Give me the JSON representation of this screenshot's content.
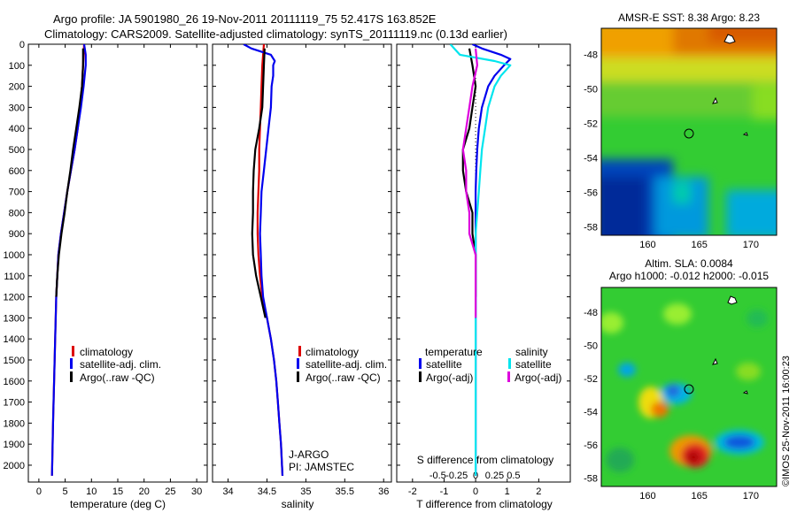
{
  "header": {
    "line1": "Argo profile: JA 5901980_26 19-Nov-2011 20111119_75 52.417S 163.852E",
    "line2": "Climatology: CARS2009. Satellite-adjusted climatology: synTS_20111119.nc (0.13d earlier)"
  },
  "colors": {
    "climatology": "#dd0000",
    "satellite": "#0000ee",
    "argo": "#000000",
    "salinity_satellite": "#00e5ee",
    "salinity_argo": "#dd00dd",
    "axis": "#000000"
  },
  "chart_data": [
    {
      "id": "temperature",
      "type": "line",
      "xlabel": "temperature (deg C)",
      "ylabel": "",
      "xlim": [
        -2,
        32
      ],
      "ylim": [
        2080,
        0
      ],
      "xticks": [
        0,
        5,
        10,
        15,
        20,
        25,
        30
      ],
      "yticks": [
        0,
        100,
        200,
        300,
        400,
        500,
        600,
        700,
        800,
        900,
        1000,
        1100,
        1200,
        1300,
        1400,
        1500,
        1600,
        1700,
        1800,
        1900,
        2000
      ],
      "legend": [
        "climatology",
        "satellite-adj. clim.",
        "Argo(..raw -QC)"
      ],
      "legend_position": "lower-center",
      "series": [
        {
          "name": "climatology",
          "color": "#dd0000",
          "depth": [
            0,
            100,
            200,
            300,
            400,
            500,
            600,
            700,
            800,
            900,
            1000,
            1200,
            1500,
            1800,
            2050
          ],
          "values": [
            8.6,
            8.4,
            8.2,
            7.8,
            7.4,
            6.8,
            6.1,
            5.4,
            4.8,
            4.2,
            3.7,
            3.3,
            3.0,
            2.7,
            2.5
          ]
        },
        {
          "name": "satellite-adj. clim.",
          "color": "#0000ee",
          "depth": [
            0,
            50,
            100,
            200,
            300,
            400,
            500,
            600,
            700,
            800,
            900,
            1000,
            1200,
            1500,
            1800,
            2050
          ],
          "values": [
            8.6,
            8.9,
            8.9,
            8.5,
            8.0,
            7.4,
            6.8,
            6.1,
            5.4,
            4.8,
            4.2,
            3.7,
            3.3,
            3.0,
            2.7,
            2.5
          ]
        },
        {
          "name": "Argo(..raw -QC)",
          "color": "#000000",
          "depth": [
            20,
            100,
            200,
            300,
            400,
            500,
            600,
            700,
            800,
            900,
            1000,
            1100,
            1200
          ],
          "values": [
            8.4,
            8.4,
            8.2,
            7.7,
            7.1,
            6.5,
            6.0,
            5.4,
            4.9,
            4.3,
            3.8,
            3.5,
            3.3
          ]
        }
      ]
    },
    {
      "id": "salinity",
      "type": "line",
      "xlabel": "salinity",
      "ylabel": "",
      "xlim": [
        33.8,
        36.1
      ],
      "ylim": [
        2080,
        0
      ],
      "xticks": [
        34,
        34.5,
        35,
        35.5,
        36
      ],
      "legend": [
        "climatology",
        "satellite-adj. clim.",
        "Argo(..raw -QC)"
      ],
      "legend_position": "lower-center",
      "annotation": [
        "J-ARGO",
        "PI: JAMSTEC"
      ],
      "series": [
        {
          "name": "climatology",
          "color": "#dd0000",
          "depth": [
            0,
            100,
            200,
            300,
            400,
            500,
            600,
            700,
            800,
            900,
            1000,
            1100,
            1200,
            1300,
            1400,
            1500,
            1600,
            1700,
            1800,
            1900,
            2050
          ],
          "values": [
            34.46,
            34.44,
            34.43,
            34.42,
            34.41,
            34.4,
            34.4,
            34.39,
            34.38,
            34.38,
            34.39,
            34.41,
            34.44,
            34.5,
            34.55,
            34.59,
            34.62,
            34.64,
            34.66,
            34.68,
            34.7
          ]
        },
        {
          "name": "satellite-adj. clim.",
          "color": "#0000ee",
          "depth": [
            0,
            20,
            50,
            80,
            100,
            150,
            200,
            300,
            400,
            500,
            600,
            700,
            800,
            900,
            1000,
            1100,
            1200,
            1300,
            1400,
            1500,
            1600,
            1700,
            1800,
            1900,
            2050
          ],
          "values": [
            34.2,
            34.3,
            34.55,
            34.6,
            34.58,
            34.58,
            34.56,
            34.55,
            34.52,
            34.49,
            34.46,
            34.43,
            34.42,
            34.41,
            34.42,
            34.43,
            34.45,
            34.5,
            34.55,
            34.59,
            34.62,
            34.64,
            34.66,
            34.68,
            34.7
          ]
        },
        {
          "name": "Argo(..raw -QC)",
          "color": "#000000",
          "depth": [
            20,
            100,
            200,
            300,
            400,
            500,
            600,
            700,
            800,
            900,
            1000,
            1100,
            1200,
            1300
          ],
          "values": [
            34.47,
            34.46,
            34.45,
            34.44,
            34.4,
            34.35,
            34.33,
            34.32,
            34.32,
            34.31,
            34.32,
            34.36,
            34.42,
            34.48
          ]
        }
      ]
    },
    {
      "id": "difference",
      "type": "line",
      "xlabel": "T difference from climatology",
      "x2label": "S difference from climatology",
      "xlim": [
        -2.5,
        3
      ],
      "ylim": [
        2080,
        0
      ],
      "xticks": [
        -2,
        -1,
        0,
        1,
        2
      ],
      "xticklabels": [
        "-2",
        "-1",
        "0",
        "1",
        "2"
      ],
      "x2ticks": [
        -0.5,
        -0.25,
        0,
        0.25,
        0.5
      ],
      "x2ticklabels": [
        "-0.5",
        "-0.25",
        "0",
        "0.25",
        "0.5"
      ],
      "legend_left": {
        "title": "temperature",
        "items": [
          "satellite",
          "Argo(-adj)"
        ]
      },
      "legend_right": {
        "title": "salinity",
        "items": [
          "satellite",
          "Argo(-adj)"
        ]
      },
      "series": [
        {
          "name": "temperature satellite",
          "color": "#0000ee",
          "depth": [
            0,
            20,
            50,
            70,
            100,
            150,
            200,
            300,
            400,
            500,
            600,
            700,
            800,
            900,
            1000,
            1200,
            1500,
            2050
          ],
          "values": [
            -0.1,
            0.2,
            0.8,
            1.1,
            0.9,
            0.6,
            0.4,
            0.2,
            0.1,
            0.05,
            0.02,
            0.0,
            0.0,
            0.0,
            0.0,
            0.0,
            0.0,
            0.0
          ]
        },
        {
          "name": "temperature Argo(-adj)",
          "color": "#000000",
          "depth": [
            20,
            100,
            200,
            300,
            400,
            500,
            600,
            700,
            800,
            900,
            1000,
            1100,
            1200
          ],
          "values": [
            -0.2,
            -0.1,
            0.0,
            -0.1,
            -0.2,
            -0.4,
            -0.4,
            -0.3,
            -0.1,
            -0.1,
            0.0,
            0.0,
            0.0
          ]
        },
        {
          "name": "salinity satellite",
          "color": "#00e5ee",
          "depth": [
            0,
            50,
            80,
            100,
            150,
            200,
            300,
            400,
            500,
            600,
            700,
            800,
            900,
            1000,
            1100,
            1200,
            1300,
            1500,
            2050
          ],
          "values": [
            -0.8,
            -0.5,
            0.6,
            1.1,
            0.8,
            0.6,
            0.4,
            0.3,
            0.2,
            0.15,
            0.1,
            0.05,
            0.0,
            0.0,
            0.0,
            0.0,
            0.0,
            0.0,
            0.0
          ]
        },
        {
          "name": "salinity Argo(-adj)",
          "color": "#dd00dd",
          "depth": [
            20,
            100,
            200,
            300,
            400,
            500,
            600,
            700,
            800,
            900,
            1000,
            1100,
            1200,
            1300
          ],
          "values": [
            0.0,
            0.05,
            -0.1,
            -0.2,
            -0.3,
            -0.4,
            -0.3,
            -0.3,
            -0.2,
            -0.2,
            0.0,
            0.0,
            0.0,
            0.0
          ]
        }
      ]
    },
    {
      "id": "sst-map",
      "type": "heatmap",
      "title": "AMSR-E SST: 8.38 Argo: 8.23",
      "xlim": [
        155.5,
        172.5
      ],
      "ylim": [
        -58.5,
        -46.5
      ],
      "xticks": [
        160,
        165,
        170
      ],
      "yticks": [
        -48,
        -50,
        -52,
        -54,
        -56,
        -58
      ],
      "argo_position": [
        163.852,
        -52.417
      ]
    },
    {
      "id": "sla-map",
      "type": "heatmap",
      "title": "Altim. SLA: 0.0084",
      "subtitle": "Argo h1000: -0.012 h2000: -0.015",
      "xlim": [
        155.5,
        172.5
      ],
      "ylim": [
        -58.5,
        -46.5
      ],
      "xticks": [
        160,
        165,
        170
      ],
      "yticks": [
        -48,
        -50,
        -52,
        -54,
        -56,
        -58
      ],
      "argo_position": [
        163.852,
        -52.417
      ]
    }
  ],
  "credit": "©IMOS 25-Nov-2011 16:00:23"
}
